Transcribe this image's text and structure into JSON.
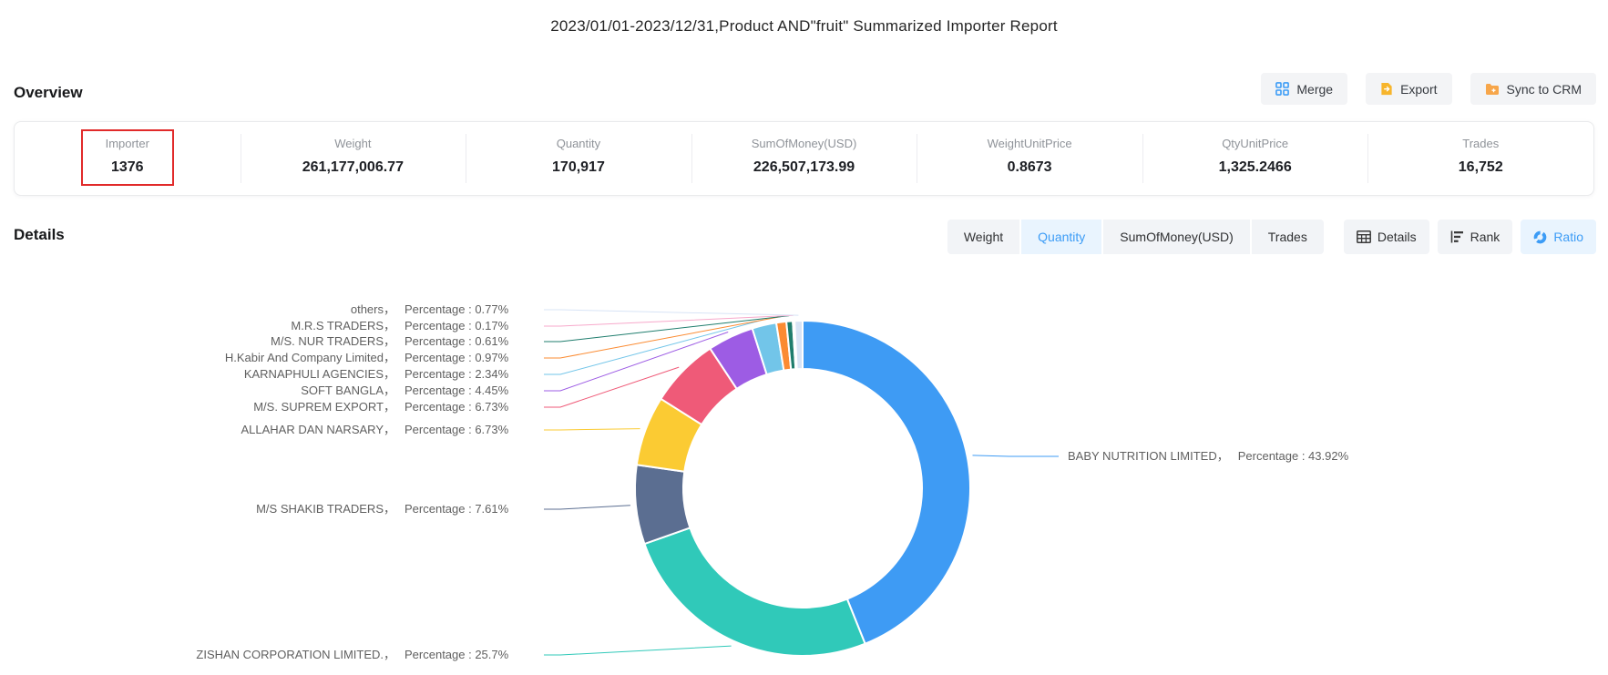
{
  "title": "2023/01/01-2023/12/31,Product AND\"fruit\" Summarized Importer Report",
  "overview": {
    "heading": "Overview",
    "actions": [
      {
        "label": "Merge",
        "icon": "merge-icon"
      },
      {
        "label": "Export",
        "icon": "export-icon"
      },
      {
        "label": "Sync to CRM",
        "icon": "sync-icon"
      }
    ],
    "stats": [
      {
        "label": "Importer",
        "value": "1376",
        "highlighted": true
      },
      {
        "label": "Weight",
        "value": "261,177,006.77"
      },
      {
        "label": "Quantity",
        "value": "170,917"
      },
      {
        "label": "SumOfMoney(USD)",
        "value": "226,507,173.99"
      },
      {
        "label": "WeightUnitPrice",
        "value": "0.8673"
      },
      {
        "label": "QtyUnitPrice",
        "value": "1,325.2466"
      },
      {
        "label": "Trades",
        "value": "16,752"
      }
    ],
    "highlight_color": "#e12a2a"
  },
  "details": {
    "heading": "Details",
    "metric_tabs": [
      {
        "label": "Weight",
        "active": false
      },
      {
        "label": "Quantity",
        "active": true
      },
      {
        "label": "SumOfMoney(USD)",
        "active": false
      },
      {
        "label": "Trades",
        "active": false
      }
    ],
    "view_buttons": [
      {
        "label": "Details",
        "icon": "table-icon",
        "active": false
      },
      {
        "label": "Rank",
        "icon": "rank-icon",
        "active": false
      },
      {
        "label": "Ratio",
        "icon": "ratio-icon",
        "active": true
      }
    ],
    "active_color": "#3c9cf6"
  },
  "chart_data": {
    "type": "pie",
    "title": "Quantity ratio by importer",
    "label_prefix": "Percentage",
    "legend_position": "none",
    "donut": true,
    "slices": [
      {
        "name": "BABY NUTRITION LIMITED",
        "pct": 43.92,
        "pct_label": "43.92%",
        "color": "#3e9bf4",
        "side": "right"
      },
      {
        "name": "ZISHAN CORPORATION LIMITED.",
        "pct": 25.7,
        "pct_label": "25.7%",
        "color": "#30c9b9",
        "side": "left"
      },
      {
        "name": "M/S SHAKIB TRADERS",
        "pct": 7.61,
        "pct_label": "7.61%",
        "color": "#5b6e91",
        "side": "left"
      },
      {
        "name": "ALLAHAR DAN NARSARY",
        "pct": 6.73,
        "pct_label": "6.73%",
        "color": "#fbcb33",
        "side": "left"
      },
      {
        "name": "M/S. SUPREM EXPORT",
        "pct": 6.73,
        "pct_label": "6.73%",
        "color": "#ef5a78",
        "side": "left"
      },
      {
        "name": "SOFT BANGLA",
        "pct": 4.45,
        "pct_label": "4.45%",
        "color": "#9d5ce4",
        "side": "left"
      },
      {
        "name": "KARNAPHULI AGENCIES",
        "pct": 2.34,
        "pct_label": "2.34%",
        "color": "#72c5e9",
        "side": "left"
      },
      {
        "name": "H.Kabir And Company Limited",
        "pct": 0.97,
        "pct_label": "0.97%",
        "color": "#fb8b32",
        "side": "left"
      },
      {
        "name": "M/S. NUR TRADERS",
        "pct": 0.61,
        "pct_label": "0.61%",
        "color": "#1f7d6d",
        "side": "left"
      },
      {
        "name": "M.R.S TRADERS",
        "pct": 0.17,
        "pct_label": "0.17%",
        "color": "#f7a9cb",
        "side": "left"
      },
      {
        "name": "others",
        "pct": 0.77,
        "pct_label": "0.77%",
        "color": "#d8e4f6",
        "side": "left"
      }
    ]
  }
}
